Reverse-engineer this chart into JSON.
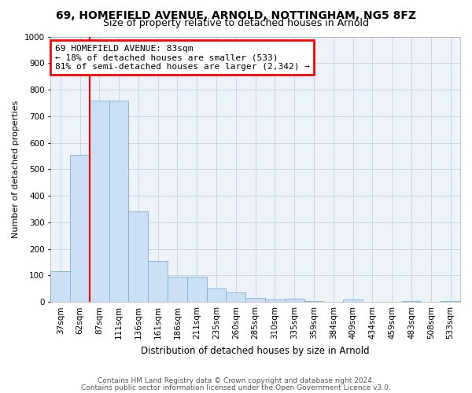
{
  "title1": "69, HOMEFIELD AVENUE, ARNOLD, NOTTINGHAM, NG5 8FZ",
  "title2": "Size of property relative to detached houses in Arnold",
  "xlabel": "Distribution of detached houses by size in Arnold",
  "ylabel": "Number of detached properties",
  "categories": [
    "37sqm",
    "62sqm",
    "87sqm",
    "111sqm",
    "136sqm",
    "161sqm",
    "186sqm",
    "211sqm",
    "235sqm",
    "260sqm",
    "285sqm",
    "310sqm",
    "335sqm",
    "359sqm",
    "384sqm",
    "409sqm",
    "434sqm",
    "459sqm",
    "483sqm",
    "508sqm",
    "533sqm"
  ],
  "values": [
    115,
    555,
    760,
    760,
    340,
    155,
    95,
    95,
    50,
    35,
    15,
    8,
    12,
    4,
    0,
    8,
    0,
    0,
    4,
    0,
    4
  ],
  "bar_color": "#cce0f5",
  "bar_edge_color": "#7ab0d4",
  "annotation_text": "69 HOMEFIELD AVENUE: 83sqm\n← 18% of detached houses are smaller (533)\n81% of semi-detached houses are larger (2,342) →",
  "annotation_box_color": "white",
  "annotation_box_edge_color": "red",
  "vline_color": "red",
  "vline_x_index": 2,
  "ylim": [
    0,
    1000
  ],
  "yticks": [
    0,
    100,
    200,
    300,
    400,
    500,
    600,
    700,
    800,
    900,
    1000
  ],
  "footnote1": "Contains HM Land Registry data © Crown copyright and database right 2024.",
  "footnote2": "Contains public sector information licensed under the Open Government Licence v3.0.",
  "bg_color": "#eef3fa",
  "grid_color": "#c8d4e4",
  "title1_fontsize": 10,
  "title2_fontsize": 9,
  "annotation_fontsize": 8,
  "ylabel_fontsize": 8,
  "xlabel_fontsize": 8.5,
  "tick_fontsize": 7.5,
  "footnote_fontsize": 6.5
}
